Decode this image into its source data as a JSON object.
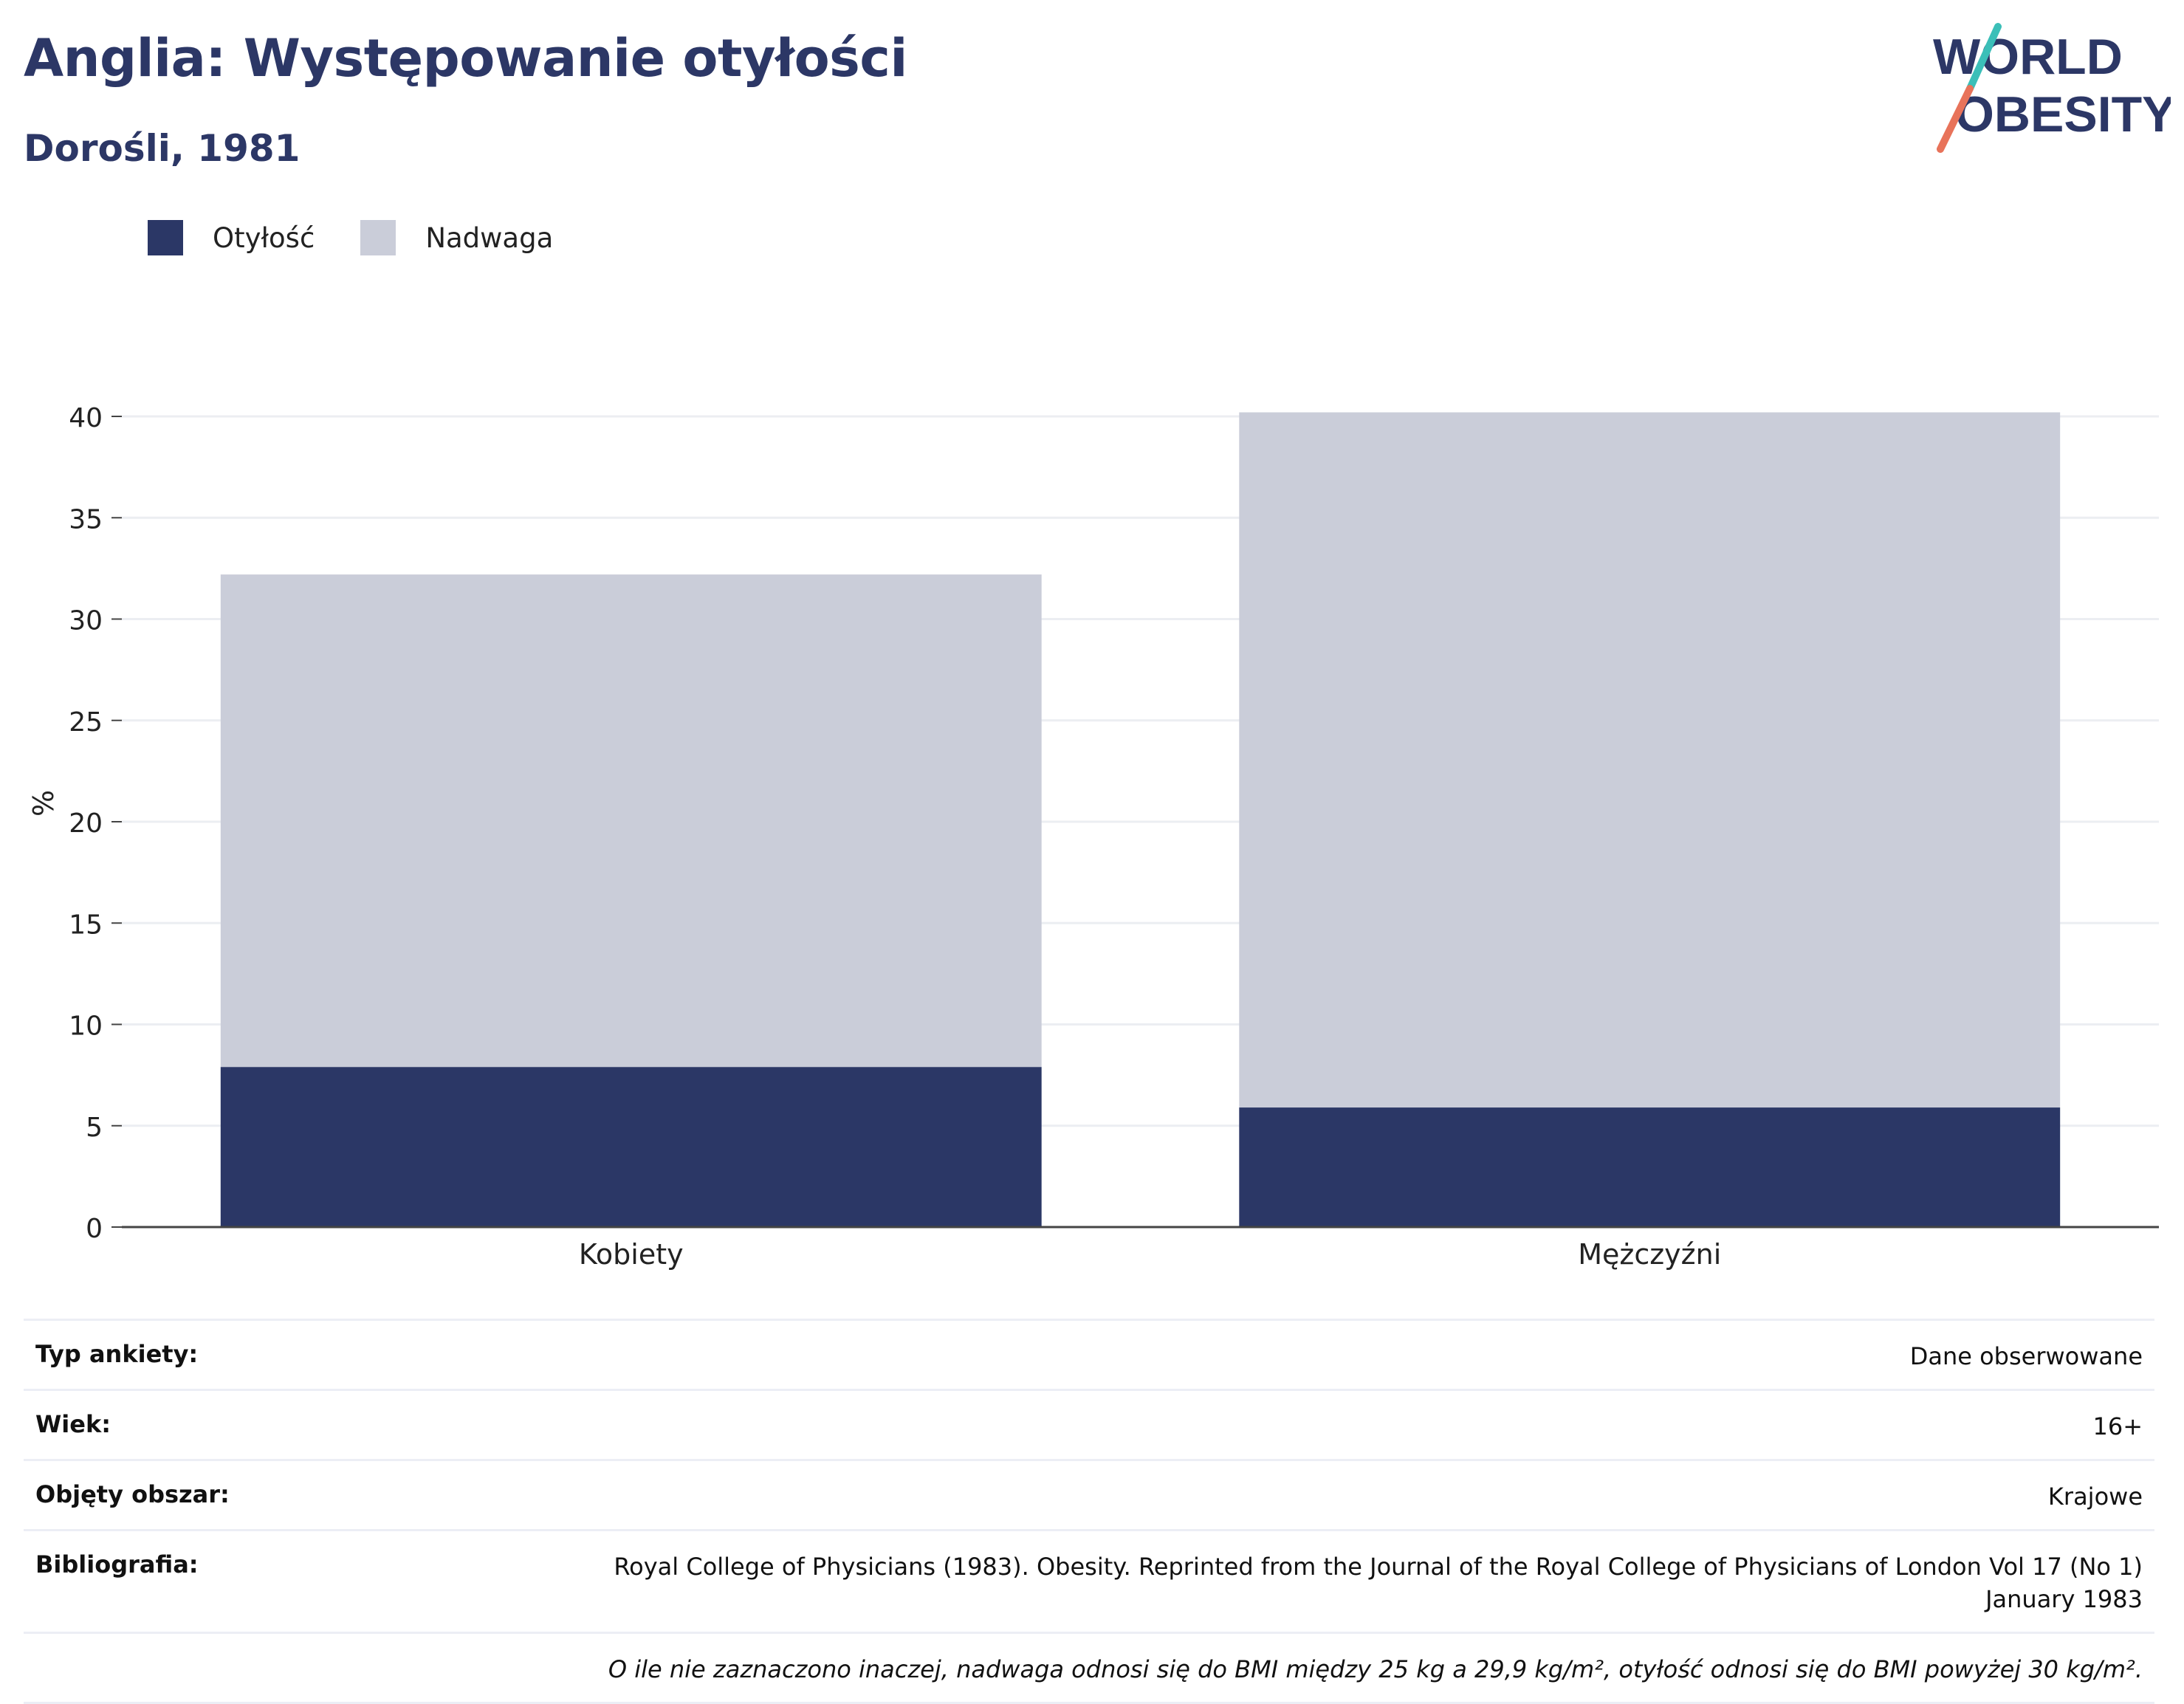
{
  "header": {
    "title": "Anglia: Występowanie otyłości",
    "subtitle": "Dorośli, 1981"
  },
  "logo": {
    "line1": "WORLD",
    "line2": "OBESITY",
    "colors": {
      "text": "#2c3766",
      "slash_top": "#3bbfb8",
      "slash_bottom": "#e8735a"
    }
  },
  "legend": [
    {
      "label": "Otyłość",
      "color": "#2b3766"
    },
    {
      "label": "Nadwaga",
      "color": "#cacdd9"
    }
  ],
  "chart_data": {
    "type": "bar",
    "stacked": true,
    "categories": [
      "Kobiety",
      "Mężczyźni"
    ],
    "series": [
      {
        "name": "Otyłość",
        "values": [
          7.9,
          5.9
        ],
        "color": "#2b3766"
      },
      {
        "name": "Nadwaga",
        "values": [
          24.3,
          34.3
        ],
        "color": "#cacdd9"
      }
    ],
    "ylabel": "%",
    "ylim": [
      0,
      40
    ],
    "yticks": [
      0,
      5,
      10,
      15,
      20,
      25,
      30,
      35,
      40
    ],
    "grid": true,
    "legend_position": "top-left"
  },
  "meta": {
    "rows": [
      {
        "label": "Typ ankiety:",
        "value": "Dane obserwowane"
      },
      {
        "label": "Wiek:",
        "value": "16+"
      },
      {
        "label": "Objęty obszar:",
        "value": "Krajowe"
      },
      {
        "label": "Bibliografia:",
        "value": "Royal College of Physicians (1983). Obesity. Reprinted from the Journal of the Royal College of Physicians of London Vol 17 (No 1) January 1983"
      }
    ],
    "note": "O ile nie zaznaczono inaczej, nadwaga odnosi się do BMI między 25 kg a 29,9 kg/m², otyłość odnosi się do BMI powyżej 30 kg/m²."
  }
}
